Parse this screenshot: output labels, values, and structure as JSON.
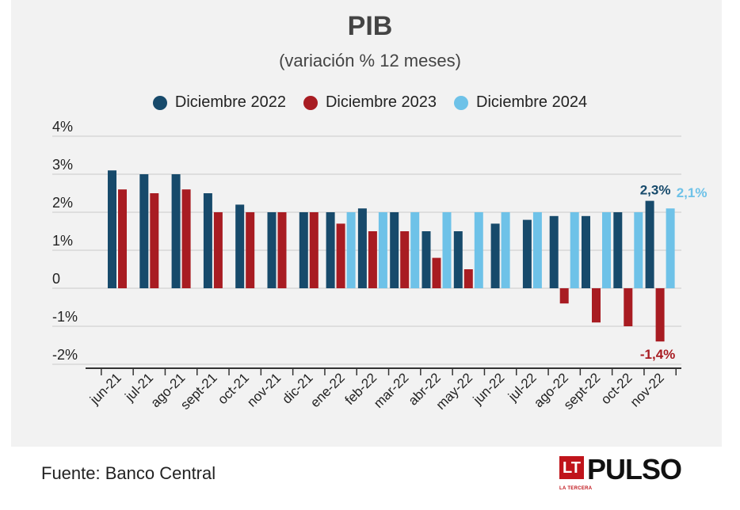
{
  "title": "PIB",
  "subtitle": "(variación % 12 meses)",
  "source": "Fuente: Banco Central",
  "logo": {
    "box": "LT",
    "sub": "LA TERCERA",
    "word": "PULSO"
  },
  "colors": {
    "d2022": "#174a6b",
    "d2023": "#a81c22",
    "d2024": "#6ec2e8",
    "axis": "#333333",
    "grid": "#c9c9c9"
  },
  "chart_data": {
    "type": "bar",
    "title": "PIB",
    "subtitle": "(variación % 12 meses)",
    "xlabel": "",
    "ylabel": "",
    "ylim": [
      -2,
      4
    ],
    "yticks": [
      {
        "v": 4,
        "label": "4%"
      },
      {
        "v": 3,
        "label": "3%"
      },
      {
        "v": 2,
        "label": "2%"
      },
      {
        "v": 1,
        "label": "1%"
      },
      {
        "v": 0,
        "label": "0"
      },
      {
        "v": -1,
        "label": "-1%"
      },
      {
        "v": -2,
        "label": "-2%"
      }
    ],
    "grid": true,
    "legend_position": "top-center",
    "categories": [
      "jun-21",
      "jul-21",
      "ago-21",
      "sept-21",
      "oct-21",
      "nov-21",
      "dic-21",
      "ene-22",
      "feb-22",
      "mar-22",
      "abr-22",
      "may-22",
      "jun-22",
      "jul-22",
      "ago-22",
      "sept-22",
      "oct-22",
      "nov-22"
    ],
    "series": [
      {
        "name": "Diciembre 2022",
        "color": "#174a6b",
        "values": [
          3.1,
          3.0,
          3.0,
          2.5,
          2.2,
          2.0,
          2.0,
          2.0,
          2.1,
          2.0,
          1.5,
          1.5,
          1.7,
          1.8,
          1.9,
          1.9,
          2.0,
          2.3
        ]
      },
      {
        "name": "Diciembre 2023",
        "color": "#a81c22",
        "values": [
          2.6,
          2.5,
          2.6,
          2.0,
          2.0,
          2.0,
          2.0,
          1.7,
          1.5,
          1.5,
          0.8,
          0.5,
          null,
          null,
          -0.4,
          -0.9,
          -1.0,
          -1.4
        ]
      },
      {
        "name": "Diciembre 2024",
        "color": "#6ec2e8",
        "values": [
          null,
          null,
          null,
          null,
          null,
          null,
          null,
          2.0,
          2.0,
          2.0,
          2.0,
          2.0,
          2.0,
          2.0,
          2.0,
          2.0,
          2.0,
          2.1
        ]
      }
    ],
    "annotations": [
      {
        "text": "2,3%",
        "series": 0,
        "category": "nov-22",
        "color": "#174a6b"
      },
      {
        "text": "2,1%",
        "series": 2,
        "category": "nov-22",
        "color": "#6ec2e8"
      },
      {
        "text": "-1,4%",
        "series": 1,
        "category": "nov-22",
        "color": "#a81c22"
      }
    ]
  }
}
